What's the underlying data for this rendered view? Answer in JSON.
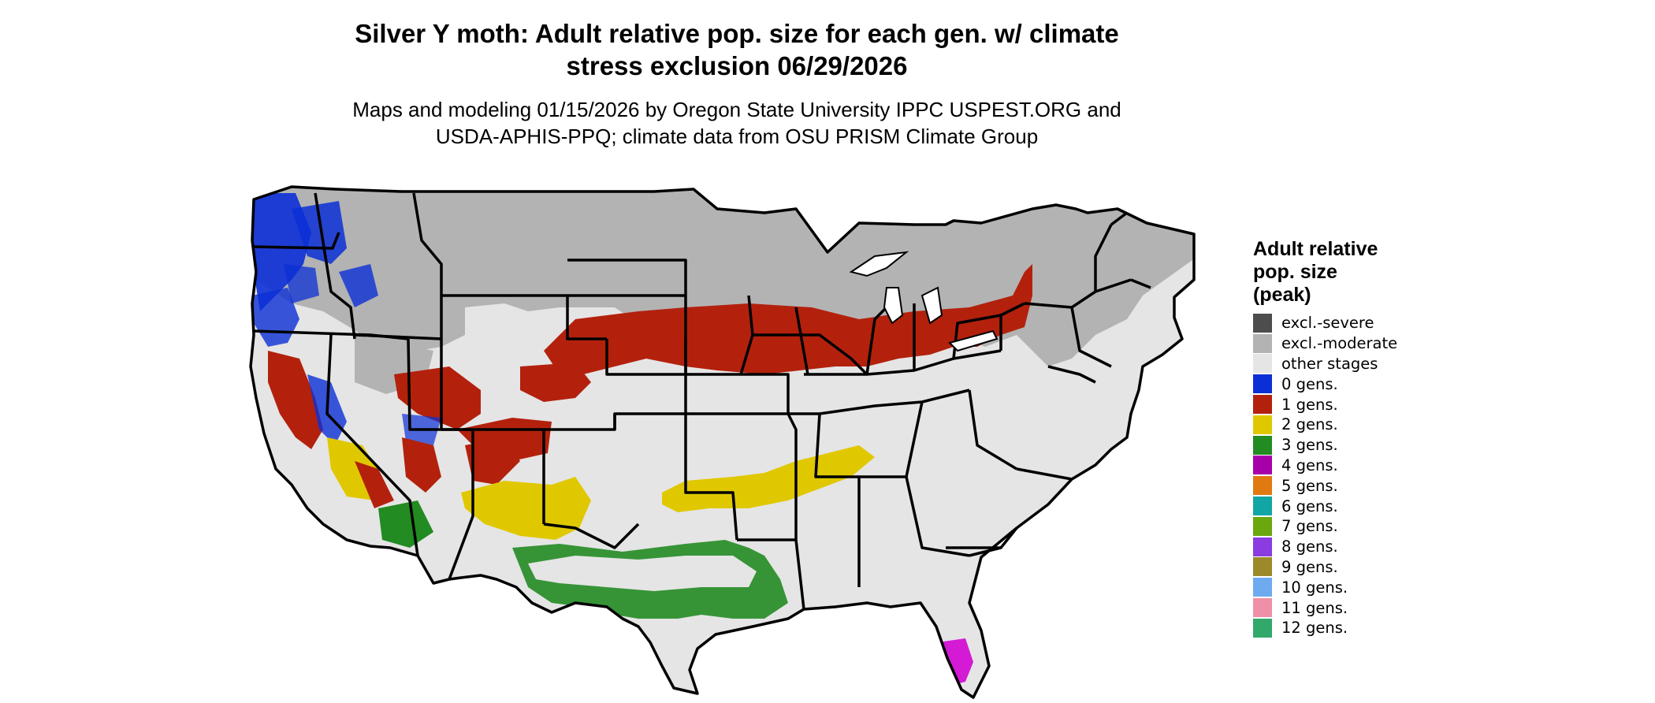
{
  "title_line1": "Silver Y moth: Adult relative pop. size for each gen. w/ climate",
  "title_line2": "stress exclusion 06/29/2026",
  "subtitle_line1": "Maps and modeling 01/15/2026 by Oregon State University IPPC USPEST.ORG and",
  "subtitle_line2": "USDA-APHIS-PPQ; climate data from OSU PRISM Climate Group",
  "legend": {
    "title_lines": [
      "Adult relative",
      "pop. size",
      "(peak)"
    ],
    "items": [
      {
        "label": "excl.-severe",
        "color": "#4d4d4d"
      },
      {
        "label": "excl.-moderate",
        "color": "#b3b3b3"
      },
      {
        "label": "other stages",
        "color": "#e5e5e5"
      },
      {
        "label": "0 gens.",
        "color": "#0b2fd6"
      },
      {
        "label": "1 gens.",
        "color": "#b3210d"
      },
      {
        "label": "2 gens.",
        "color": "#e0c800"
      },
      {
        "label": "3 gens.",
        "color": "#228b22"
      },
      {
        "label": "4 gens.",
        "color": "#a800a8"
      },
      {
        "label": "5 gens.",
        "color": "#e07a10"
      },
      {
        "label": "6 gens.",
        "color": "#12a5a5"
      },
      {
        "label": "7 gens.",
        "color": "#6aa80e"
      },
      {
        "label": "8 gens.",
        "color": "#8a3ce0"
      },
      {
        "label": "9 gens.",
        "color": "#9c8a2a"
      },
      {
        "label": "10 gens.",
        "color": "#6eaaf0"
      },
      {
        "label": "11 gens.",
        "color": "#f090a8"
      },
      {
        "label": "12 gens.",
        "color": "#32a86a"
      }
    ]
  }
}
